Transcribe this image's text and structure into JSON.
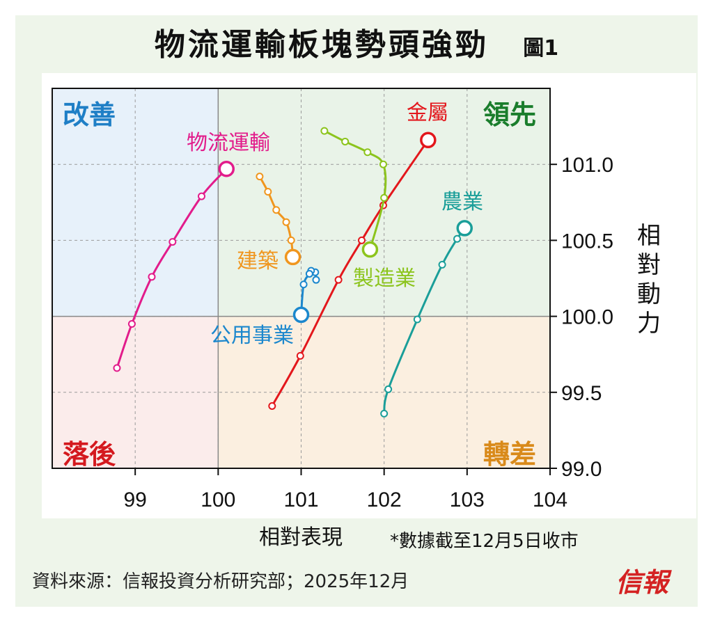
{
  "title": "物流運輸板塊勢頭強勁",
  "figure_label": "圖1",
  "note": "*數據截至12月5日收市",
  "source": "資料來源：信報投資分析研究部；2025年12月",
  "logo_text": "信報",
  "chart_data": {
    "type": "scatter",
    "chart_kind": "relative rotation graph",
    "title": "物流運輸板塊勢頭強勁",
    "xlabel": "相對表現",
    "ylabel": "相對動力",
    "xlim": [
      98,
      104
    ],
    "ylim": [
      99.0,
      101.5
    ],
    "x_center": 100,
    "y_center": 100,
    "x_ticks": [
      "99",
      "100",
      "101",
      "102",
      "103",
      "104"
    ],
    "y_ticks": [
      "101.0",
      "100.5",
      "100.0",
      "99.5",
      "99.0"
    ],
    "grid": true,
    "quadrants": [
      {
        "label": "改善",
        "corner": "top-left",
        "color": "#1f7fc6",
        "bg": "#e7f1fa"
      },
      {
        "label": "領先",
        "corner": "top-right",
        "color": "#1a7d2c",
        "bg": "#e9f3e8"
      },
      {
        "label": "落後",
        "corner": "bottom-left",
        "color": "#d4191e",
        "bg": "#fbeceb"
      },
      {
        "label": "轉差",
        "corner": "bottom-right",
        "color": "#d98a1a",
        "bg": "#fbefe0"
      }
    ],
    "series": [
      {
        "name": "物流運輸",
        "color": "#e21c8b",
        "points": [
          [
            98.78,
            99.66
          ],
          [
            98.96,
            99.95
          ],
          [
            99.2,
            100.26
          ],
          [
            99.45,
            100.49
          ],
          [
            99.8,
            100.79
          ],
          [
            100.1,
            100.97
          ]
        ]
      },
      {
        "name": "建築",
        "color": "#f0961e",
        "points": [
          [
            100.5,
            100.92
          ],
          [
            100.6,
            100.82
          ],
          [
            100.7,
            100.7
          ],
          [
            100.82,
            100.62
          ],
          [
            100.88,
            100.5
          ],
          [
            100.9,
            100.39
          ]
        ]
      },
      {
        "name": "公用事業",
        "color": "#1b87cd",
        "points": [
          [
            101.18,
            100.24
          ],
          [
            101.17,
            100.29
          ],
          [
            101.12,
            100.3
          ],
          [
            101.1,
            100.28
          ],
          [
            101.03,
            100.21
          ],
          [
            101.0,
            100.01
          ]
        ]
      },
      {
        "name": "金屬",
        "color": "#e3171c",
        "points": [
          [
            100.65,
            99.41
          ],
          [
            100.99,
            99.74
          ],
          [
            101.45,
            100.24
          ],
          [
            101.73,
            100.5
          ],
          [
            101.99,
            100.73
          ],
          [
            102.53,
            101.16
          ]
        ]
      },
      {
        "name": "製造業",
        "color": "#8cc41d",
        "points": [
          [
            101.28,
            101.22
          ],
          [
            101.53,
            101.15
          ],
          [
            101.8,
            101.08
          ],
          [
            101.99,
            101.0
          ],
          [
            102.0,
            100.78
          ],
          [
            101.83,
            100.44
          ]
        ]
      },
      {
        "name": "農業",
        "color": "#1a9e99",
        "points": [
          [
            102.0,
            99.36
          ],
          [
            102.05,
            99.52
          ],
          [
            102.4,
            99.98
          ],
          [
            102.7,
            100.34
          ],
          [
            102.88,
            100.51
          ],
          [
            102.97,
            100.58
          ]
        ]
      }
    ]
  }
}
